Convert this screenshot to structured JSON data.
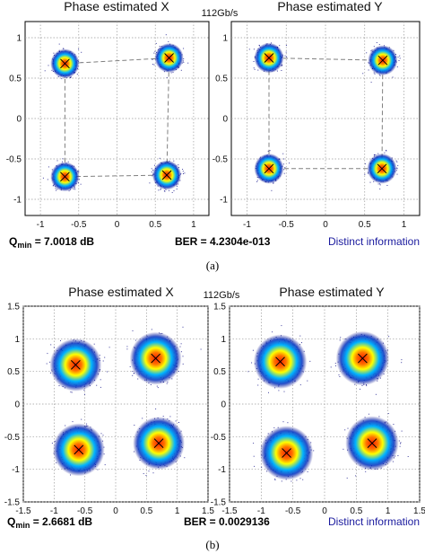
{
  "colors": {
    "cloud_outer": "#000080",
    "cloud_mid": "#00b4ff",
    "cloud_inner": "#ffff00",
    "cloud_core": "#ff2000",
    "grid": "#9a9a9a",
    "link_line": "#808080",
    "distinct_text": "#1a1a9e"
  },
  "panels": [
    {
      "caption": "(a)",
      "rate": "112Gb/s",
      "q_label": "Q",
      "q_sub": "min",
      "q_value": " = 7.0018 dB",
      "ber": "BER = 4.2304e-013",
      "distinct": "Distinct information",
      "links": true
    },
    {
      "caption": "(b)",
      "rate": "112Gb/s",
      "q_label": "Q",
      "q_sub": "min",
      "q_value": " = 2.6681 dB",
      "ber": "BER = 0.0029136",
      "distinct": "Distinct information",
      "links": false
    }
  ],
  "chart_data": [
    {
      "type": "scatter",
      "title": "Phase estimated X",
      "xlim": [
        -1.2,
        1.2
      ],
      "ylim": [
        -1.2,
        1.2
      ],
      "xticks": [
        -1,
        -0.5,
        0,
        0.5,
        1
      ],
      "yticks": [
        -1,
        -0.5,
        0,
        0.5,
        1
      ],
      "grid": true,
      "points": [
        {
          "x": -0.68,
          "y": 0.68,
          "spread": 0.09
        },
        {
          "x": 0.68,
          "y": 0.75,
          "spread": 0.09
        },
        {
          "x": -0.68,
          "y": -0.72,
          "spread": 0.09
        },
        {
          "x": 0.65,
          "y": -0.7,
          "spread": 0.09
        }
      ]
    },
    {
      "type": "scatter",
      "title": "Phase estimated Y",
      "xlim": [
        -1.2,
        1.2
      ],
      "ylim": [
        -1.2,
        1.2
      ],
      "xticks": [
        -1,
        -0.5,
        0,
        0.5,
        1
      ],
      "yticks": [
        -1,
        -0.5,
        0,
        0.5,
        1
      ],
      "grid": true,
      "points": [
        {
          "x": -0.72,
          "y": 0.75,
          "spread": 0.09
        },
        {
          "x": 0.73,
          "y": 0.72,
          "spread": 0.09
        },
        {
          "x": -0.72,
          "y": -0.62,
          "spread": 0.09
        },
        {
          "x": 0.72,
          "y": -0.62,
          "spread": 0.09
        }
      ]
    },
    {
      "type": "scatter",
      "title": "Phase estimated X",
      "xlim": [
        -1.5,
        1.5
      ],
      "ylim": [
        -1.5,
        1.5
      ],
      "xticks": [
        -1.5,
        -1,
        -0.5,
        0,
        0.5,
        1,
        1.5
      ],
      "yticks": [
        -1.5,
        -1,
        -0.5,
        0,
        0.5,
        1,
        1.5
      ],
      "grid": true,
      "points": [
        {
          "x": -0.65,
          "y": 0.6,
          "spread": 0.2
        },
        {
          "x": 0.65,
          "y": 0.7,
          "spread": 0.2
        },
        {
          "x": -0.6,
          "y": -0.7,
          "spread": 0.2
        },
        {
          "x": 0.7,
          "y": -0.6,
          "spread": 0.2
        }
      ]
    },
    {
      "type": "scatter",
      "title": "Phase estimated Y",
      "xlim": [
        -1.5,
        1.5
      ],
      "ylim": [
        -1.5,
        1.5
      ],
      "xticks": [
        -1.5,
        -1,
        -0.5,
        0,
        0.5,
        1,
        1.5
      ],
      "yticks": [
        -1.5,
        -1,
        -0.5,
        0,
        0.5,
        1,
        1.5
      ],
      "grid": true,
      "points": [
        {
          "x": -0.7,
          "y": 0.65,
          "spread": 0.2
        },
        {
          "x": 0.6,
          "y": 0.7,
          "spread": 0.2
        },
        {
          "x": -0.6,
          "y": -0.75,
          "spread": 0.2
        },
        {
          "x": 0.75,
          "y": -0.6,
          "spread": 0.2
        }
      ]
    }
  ]
}
